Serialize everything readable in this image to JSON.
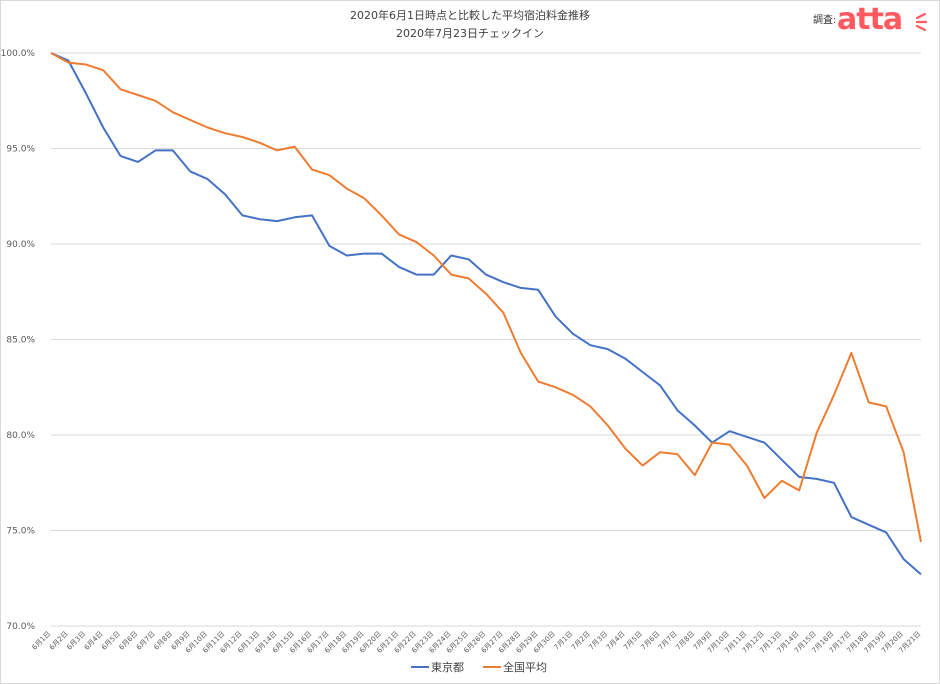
{
  "header": {
    "credit_label": "調査:",
    "logo_text": "atta",
    "logo_color": "#ff5a5f"
  },
  "chart_data": {
    "type": "line",
    "title": "2020年6月1日時点と比較した平均宿泊料金推移",
    "subtitle": "2020年7月23日チェックイン",
    "xlabel": "",
    "ylabel": "",
    "ylim": [
      70,
      100
    ],
    "yticks": [
      "70.0%",
      "75.0%",
      "80.0%",
      "85.0%",
      "90.0%",
      "95.0%",
      "100.0%"
    ],
    "ytick_values": [
      70,
      75,
      80,
      85,
      90,
      95,
      100
    ],
    "grid": true,
    "legend_position": "bottom",
    "categories": [
      "6月1日",
      "6月2日",
      "6月3日",
      "6月4日",
      "6月5日",
      "6月6日",
      "6月7日",
      "6月8日",
      "6月9日",
      "6月10日",
      "6月11日",
      "6月12日",
      "6月13日",
      "6月14日",
      "6月15日",
      "6月16日",
      "6月17日",
      "6月18日",
      "6月19日",
      "6月20日",
      "6月21日",
      "6月22日",
      "6月23日",
      "6月24日",
      "6月25日",
      "6月26日",
      "6月27日",
      "6月28日",
      "6月29日",
      "6月30日",
      "7月1日",
      "7月2日",
      "7月3日",
      "7月4日",
      "7月5日",
      "7月6日",
      "7月7日",
      "7月8日",
      "7月9日",
      "7月10日",
      "7月11日",
      "7月12日",
      "7月13日",
      "7月14日",
      "7月15日",
      "7月16日",
      "7月17日",
      "7月18日",
      "7月19日",
      "7月20日",
      "7月21日"
    ],
    "series": [
      {
        "name": "東京都",
        "color": "#4472c4",
        "values": [
          100.0,
          99.6,
          97.9,
          96.1,
          94.6,
          94.3,
          94.9,
          94.9,
          93.8,
          93.4,
          92.6,
          91.5,
          91.3,
          91.2,
          91.4,
          91.5,
          89.9,
          89.4,
          89.5,
          89.5,
          88.8,
          88.4,
          88.4,
          89.4,
          89.2,
          88.4,
          88.0,
          87.7,
          87.6,
          86.2,
          85.3,
          84.7,
          84.5,
          84.0,
          83.3,
          82.6,
          81.3,
          80.5,
          79.6,
          80.2,
          79.9,
          79.6,
          78.7,
          77.8,
          77.7,
          77.5,
          75.7,
          75.3,
          74.9,
          73.5,
          72.7
        ]
      },
      {
        "name": "全国平均",
        "color": "#ed7d31",
        "values": [
          100.0,
          99.5,
          99.4,
          99.1,
          98.1,
          97.8,
          97.5,
          96.9,
          96.5,
          96.1,
          95.8,
          95.6,
          95.3,
          94.9,
          95.1,
          93.9,
          93.6,
          92.9,
          92.4,
          91.5,
          90.5,
          90.1,
          89.4,
          88.4,
          88.2,
          87.4,
          86.4,
          84.3,
          82.8,
          82.5,
          82.1,
          81.5,
          80.5,
          79.3,
          78.4,
          79.1,
          79.0,
          77.9,
          79.6,
          79.5,
          78.4,
          76.7,
          77.6,
          77.1,
          80.1,
          82.1,
          84.3,
          81.7,
          81.5,
          79.1,
          74.4
        ]
      }
    ]
  }
}
